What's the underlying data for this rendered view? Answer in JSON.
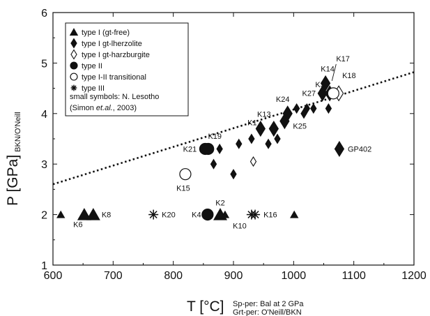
{
  "chart_data": {
    "type": "scatter",
    "xlabel_main": "T [°C]",
    "xlabel_note_1": "Sp-per: Bal at 2 GPa",
    "xlabel_note_2": "Grt-per: O'Neill/BKN",
    "ylabel_main": "P [GPa]",
    "ylabel_sub": "BKN/O'Neill",
    "xlim": [
      600,
      1200
    ],
    "ylim": [
      1,
      6
    ],
    "xticks": [
      600,
      700,
      800,
      900,
      1000,
      1100,
      1200
    ],
    "yticks": [
      1,
      2,
      3,
      4,
      5,
      6
    ],
    "grid": false,
    "legend_position": "top-left",
    "legend": [
      {
        "marker": "triangle",
        "label": "type I (gt-free)"
      },
      {
        "marker": "diamond",
        "label": "type I gt-lherzolite"
      },
      {
        "marker": "diamond-open",
        "label": "type I gt-harzburgite"
      },
      {
        "marker": "circle",
        "label": "type II"
      },
      {
        "marker": "circle-open",
        "label": "type I-II transitional"
      },
      {
        "marker": "asterisk",
        "label": "type III"
      }
    ],
    "legend_note_1": "small symbols: N. Lesotho",
    "legend_note_2_pre": "(Simon ",
    "legend_note_2_italic": "et.al.",
    "legend_note_2_post": ", 2003)",
    "trend_line": {
      "x": [
        600,
        1200
      ],
      "y": [
        2.6,
        4.82
      ]
    },
    "series": [
      {
        "marker": "triangle",
        "points": [
          {
            "x": 613,
            "y": 2.0,
            "size": "small",
            "label": ""
          },
          {
            "x": 652,
            "y": 2.0,
            "size": "large",
            "label": "K6"
          },
          {
            "x": 667,
            "y": 2.0,
            "size": "large",
            "label": "K8"
          },
          {
            "x": 878,
            "y": 2.0,
            "size": "large",
            "label": "K2"
          },
          {
            "x": 886,
            "y": 2.0,
            "size": "small",
            "label": ""
          },
          {
            "x": 1001,
            "y": 2.0,
            "size": "small",
            "label": ""
          }
        ]
      },
      {
        "marker": "diamond",
        "points": [
          {
            "x": 867,
            "y": 3.0,
            "size": "small",
            "label": ""
          },
          {
            "x": 877,
            "y": 3.3,
            "size": "small",
            "label": ""
          },
          {
            "x": 900,
            "y": 2.8,
            "size": "small",
            "label": ""
          },
          {
            "x": 909,
            "y": 3.4,
            "size": "small",
            "label": ""
          },
          {
            "x": 930,
            "y": 3.5,
            "size": "small",
            "label": ""
          },
          {
            "x": 945,
            "y": 3.7,
            "size": "large",
            "label": "K1"
          },
          {
            "x": 958,
            "y": 3.4,
            "size": "small",
            "label": ""
          },
          {
            "x": 967,
            "y": 3.7,
            "size": "large",
            "label": "K13"
          },
          {
            "x": 973,
            "y": 3.5,
            "size": "small",
            "label": ""
          },
          {
            "x": 985,
            "y": 3.85,
            "size": "large",
            "label": "K25"
          },
          {
            "x": 990,
            "y": 4.0,
            "size": "large",
            "label": "K24"
          },
          {
            "x": 1005,
            "y": 4.1,
            "size": "small",
            "label": ""
          },
          {
            "x": 1017,
            "y": 4.0,
            "size": "small",
            "label": ""
          },
          {
            "x": 1022,
            "y": 4.1,
            "size": "small",
            "label": "K27"
          },
          {
            "x": 1033,
            "y": 4.1,
            "size": "small",
            "label": ""
          },
          {
            "x": 1048,
            "y": 4.4,
            "size": "large",
            "label": ""
          },
          {
            "x": 1053,
            "y": 4.6,
            "size": "large",
            "label": "K14"
          },
          {
            "x": 1058,
            "y": 4.1,
            "size": "small",
            "label": ""
          },
          {
            "x": 1060,
            "y": 4.4,
            "size": "large",
            "label": "K3"
          },
          {
            "x": 1076,
            "y": 3.3,
            "size": "large",
            "label": "GP402"
          }
        ]
      },
      {
        "marker": "diamond-open",
        "points": [
          {
            "x": 933,
            "y": 3.05,
            "size": "small",
            "label": ""
          },
          {
            "x": 1075,
            "y": 4.4,
            "size": "large",
            "label": "K18"
          }
        ]
      },
      {
        "marker": "circle",
        "points": [
          {
            "x": 853,
            "y": 3.3,
            "size": "large",
            "label": "K21"
          },
          {
            "x": 858,
            "y": 3.3,
            "size": "large",
            "label": ""
          },
          {
            "x": 857,
            "y": 2.0,
            "size": "large",
            "label": "K4"
          }
        ]
      },
      {
        "marker": "circle-open",
        "points": [
          {
            "x": 820,
            "y": 2.8,
            "size": "large",
            "label": "K15"
          },
          {
            "x": 1066,
            "y": 4.4,
            "size": "large",
            "label": "K17"
          }
        ]
      },
      {
        "marker": "asterisk",
        "points": [
          {
            "x": 767,
            "y": 2.0,
            "size": "large",
            "label": "K20"
          },
          {
            "x": 930,
            "y": 2.0,
            "size": "large",
            "label": "K10"
          },
          {
            "x": 936,
            "y": 2.0,
            "size": "large",
            "label": "K16"
          }
        ]
      }
    ],
    "standalone_labels": [
      {
        "text": "K19",
        "x": 869,
        "y": 3.5
      }
    ]
  }
}
